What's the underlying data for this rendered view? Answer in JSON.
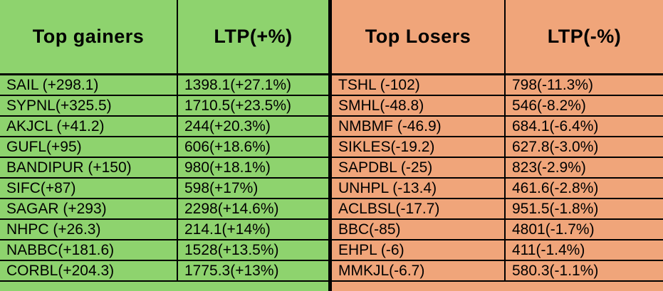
{
  "colors": {
    "gainers_bg": "#8ed36e",
    "losers_bg": "#f0a57a",
    "grid": "#000000",
    "text": "#000000"
  },
  "gainers": {
    "title": "Top gainers",
    "ltp_header": "LTP(+%)",
    "rows": [
      {
        "symbol": "SAIL (+298.1)",
        "ltp": "1398.1(+27.1%)"
      },
      {
        "symbol": "SYPNL(+325.5)",
        "ltp": "1710.5(+23.5%)"
      },
      {
        "symbol": "AKJCL (+41.2)",
        "ltp": "244(+20.3%)"
      },
      {
        "symbol": "GUFL(+95)",
        "ltp": "606(+18.6%)"
      },
      {
        "symbol": "BANDIPUR (+150)",
        "ltp": "980(+18.1%)"
      },
      {
        "symbol": "SIFC(+87)",
        "ltp": "598(+17%)"
      },
      {
        "symbol": "SAGAR (+293)",
        "ltp": "2298(+14.6%)"
      },
      {
        "symbol": "NHPC (+26.3)",
        "ltp": "214.1(+14%)"
      },
      {
        "symbol": "NABBC(+181.6)",
        "ltp": "1528(+13.5%)"
      },
      {
        "symbol": "CORBL(+204.3)",
        "ltp": "1775.3(+13%)"
      }
    ]
  },
  "losers": {
    "title": "Top Losers",
    "ltp_header": "LTP(-%)",
    "rows": [
      {
        "symbol": "TSHL (-102)",
        "ltp": "798(-11.3%)"
      },
      {
        "symbol": "SMHL(-48.8)",
        "ltp": "546(-8.2%)"
      },
      {
        "symbol": "NMBMF (-46.9)",
        "ltp": "684.1(-6.4%)"
      },
      {
        "symbol": "SIKLES(-19.2)",
        "ltp": "627.8(-3.0%)"
      },
      {
        "symbol": "SAPDBL (-25)",
        "ltp": "823(-2.9%)"
      },
      {
        "symbol": "UNHPL (-13.4)",
        "ltp": "461.6(-2.8%)"
      },
      {
        "symbol": "ACLBSL(-17.7)",
        "ltp": "951.5(-1.8%)"
      },
      {
        "symbol": "BBC(-85)",
        "ltp": "4801(-1.7%)"
      },
      {
        "symbol": "EHPL (-6)",
        "ltp": "411(-1.4%)"
      },
      {
        "symbol": "MMKJL(-6.7)",
        "ltp": "580.3(-1.1%)"
      }
    ]
  },
  "chart_data": [
    {
      "type": "table",
      "title": "Top gainers",
      "columns": [
        "Top gainers",
        "LTP(+%)"
      ],
      "rows": [
        [
          "SAIL (+298.1)",
          "1398.1(+27.1%)"
        ],
        [
          "SYPNL(+325.5)",
          "1710.5(+23.5%)"
        ],
        [
          "AKJCL (+41.2)",
          "244(+20.3%)"
        ],
        [
          "GUFL(+95)",
          "606(+18.6%)"
        ],
        [
          "BANDIPUR (+150)",
          "980(+18.1%)"
        ],
        [
          "SIFC(+87)",
          "598(+17%)"
        ],
        [
          "SAGAR (+293)",
          "2298(+14.6%)"
        ],
        [
          "NHPC (+26.3)",
          "214.1(+14%)"
        ],
        [
          "NABBC(+181.6)",
          "1528(+13.5%)"
        ],
        [
          "CORBL(+204.3)",
          "1775.3(+13%)"
        ]
      ]
    },
    {
      "type": "table",
      "title": "Top Losers",
      "columns": [
        "Top Losers",
        "LTP(-%)"
      ],
      "rows": [
        [
          "TSHL (-102)",
          "798(-11.3%)"
        ],
        [
          "SMHL(-48.8)",
          "546(-8.2%)"
        ],
        [
          "NMBMF (-46.9)",
          "684.1(-6.4%)"
        ],
        [
          "SIKLES(-19.2)",
          "627.8(-3.0%)"
        ],
        [
          "SAPDBL (-25)",
          "823(-2.9%)"
        ],
        [
          "UNHPL (-13.4)",
          "461.6(-2.8%)"
        ],
        [
          "ACLBSL(-17.7)",
          "951.5(-1.8%)"
        ],
        [
          "BBC(-85)",
          "4801(-1.7%)"
        ],
        [
          "EHPL (-6)",
          "411(-1.4%)"
        ],
        [
          "MMKJL(-6.7)",
          "580.3(-1.1%)"
        ]
      ]
    }
  ]
}
